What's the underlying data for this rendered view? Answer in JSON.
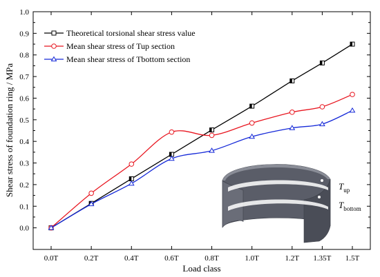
{
  "chart_data": {
    "type": "line",
    "title": "",
    "xlabel": "Load class",
    "ylabel": "Shear stress of foundation ring / MPa",
    "categories": [
      "0.0T",
      "0.2T",
      "0.4T",
      "0.6T",
      "0.8T",
      "1.0T",
      "1.2T",
      "1.35T",
      "1.5T"
    ],
    "x": [
      0.0,
      0.2,
      0.4,
      0.6,
      0.8,
      1.0,
      1.2,
      1.35,
      1.5
    ],
    "ylim": [
      -0.1,
      1.0
    ],
    "yticks": [
      "0.0",
      "0.1",
      "0.2",
      "0.3",
      "0.4",
      "0.5",
      "0.6",
      "0.7",
      "0.8",
      "0.9",
      "1.0"
    ],
    "grid": false,
    "legend_position": "top-left",
    "series": [
      {
        "name": "Theoretical torsional shear stress value",
        "color": "#000000",
        "marker": "square",
        "values": [
          0.0,
          0.113,
          0.227,
          0.34,
          0.453,
          0.563,
          0.68,
          0.763,
          0.85
        ]
      },
      {
        "name": "Mean shear stress of Tup section",
        "color": "#e8141e",
        "marker": "circle",
        "values": [
          0.0,
          0.16,
          0.295,
          0.443,
          0.428,
          0.485,
          0.535,
          0.56,
          0.617
        ]
      },
      {
        "name": "Mean shear stress of Tbottom section",
        "color": "#1428d8",
        "marker": "triangle",
        "values": [
          0.0,
          0.11,
          0.205,
          0.32,
          0.357,
          0.422,
          0.462,
          0.48,
          0.543
        ]
      }
    ],
    "inset": {
      "label_up": "T",
      "label_up_sub": "up",
      "label_bottom": "T",
      "label_bottom_sub": "bottom",
      "body_color": "#5a5d68",
      "highlight_color": "#8a8d97"
    }
  }
}
